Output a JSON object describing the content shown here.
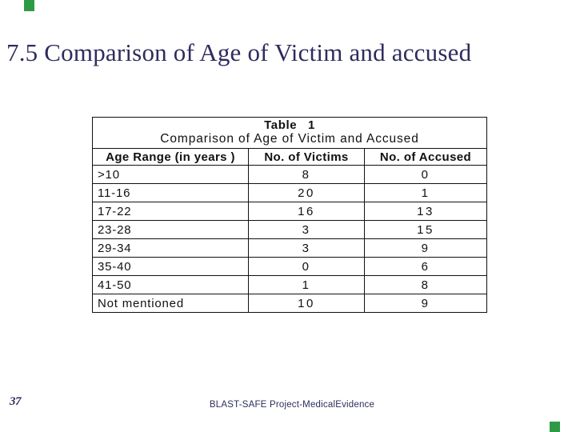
{
  "slide": {
    "title": "7.5 Comparison of Age of Victim and accused",
    "page_number": "37",
    "footer": "BLAST-SAFE Project-MedicalEvidence",
    "title_color": "#2d2c5e",
    "footer_color": "#2d2c5e",
    "accent_color": "#2e9b44"
  },
  "table": {
    "caption_line1": "Table 1",
    "caption_line2": "Comparison of Age of Victim and Accused",
    "columns": [
      "Age Range (in years )",
      "No. of Victims",
      "No. of Accused"
    ],
    "rows": [
      {
        "age_range": ">10",
        "victims": "8",
        "accused": "0"
      },
      {
        "age_range": "11-16",
        "victims": "20",
        "accused": "1"
      },
      {
        "age_range": "17-22",
        "victims": "16",
        "accused": "13"
      },
      {
        "age_range": "23-28",
        "victims": "3",
        "accused": "15"
      },
      {
        "age_range": "29-34",
        "victims": "3",
        "accused": "9"
      },
      {
        "age_range": "35-40",
        "victims": "0",
        "accused": "6"
      },
      {
        "age_range": "41-50",
        "victims": "1",
        "accused": "8"
      },
      {
        "age_range": "Not mentioned",
        "victims": "10",
        "accused": "9"
      }
    ]
  }
}
